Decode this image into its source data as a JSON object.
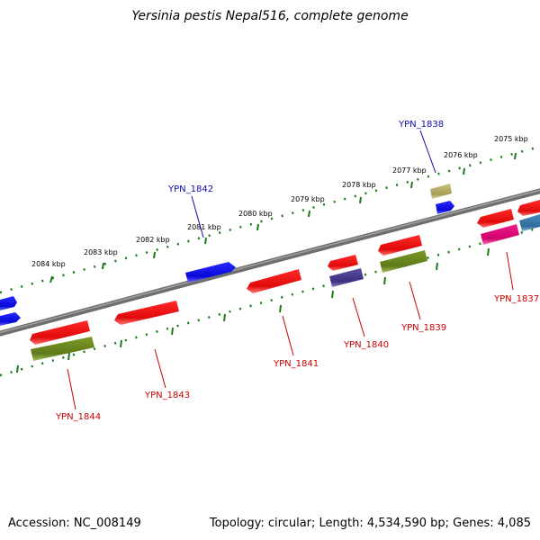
{
  "title": "Yersinia pestis Nepal516, complete genome",
  "footer": {
    "accession": "Accession: NC_008149",
    "summary": "Topology: circular; Length: 4,534,590 bp; Genes: 4,085"
  },
  "ticks": [
    {
      "label": "2075 kbp",
      "kbp": 2075
    },
    {
      "label": "2076 kbp",
      "kbp": 2076
    },
    {
      "label": "2077 kbp",
      "kbp": 2077
    },
    {
      "label": "2078 kbp",
      "kbp": 2078
    },
    {
      "label": "2079 kbp",
      "kbp": 2079
    },
    {
      "label": "2080 kbp",
      "kbp": 2080
    },
    {
      "label": "2081 kbp",
      "kbp": 2081
    },
    {
      "label": "2082 kbp",
      "kbp": 2082
    },
    {
      "label": "2083 kbp",
      "kbp": 2083
    },
    {
      "label": "2084 kbp",
      "kbp": 2084
    }
  ],
  "genes": [
    {
      "label": "YPN_1838",
      "strand": "forward",
      "color": "#0a0aa8"
    },
    {
      "label": "YPN_1842",
      "strand": "forward",
      "color": "#0a0aa8"
    },
    {
      "label": "YPN_1837",
      "strand": "reverse",
      "color": "#cc0000"
    },
    {
      "label": "YPN_1839",
      "strand": "reverse",
      "color": "#cc0000"
    },
    {
      "label": "YPN_1840",
      "strand": "reverse",
      "color": "#cc0000"
    },
    {
      "label": "YPN_1841",
      "strand": "reverse",
      "color": "#cc0000"
    },
    {
      "label": "YPN_1843",
      "strand": "reverse",
      "color": "#cc0000"
    },
    {
      "label": "YPN_1844",
      "strand": "reverse",
      "color": "#cc0000"
    }
  ],
  "colors": {
    "backbone": "#7f7f7f",
    "tick": "#1a7a1a",
    "forward_gene": "#1010e0",
    "reverse_gene": "#e81010",
    "olive": "#6b8a1e",
    "purple": "#4a3e8c",
    "khaki": "#b8b06a",
    "pink": "#e0107a",
    "steel": "#3f7fb0"
  }
}
